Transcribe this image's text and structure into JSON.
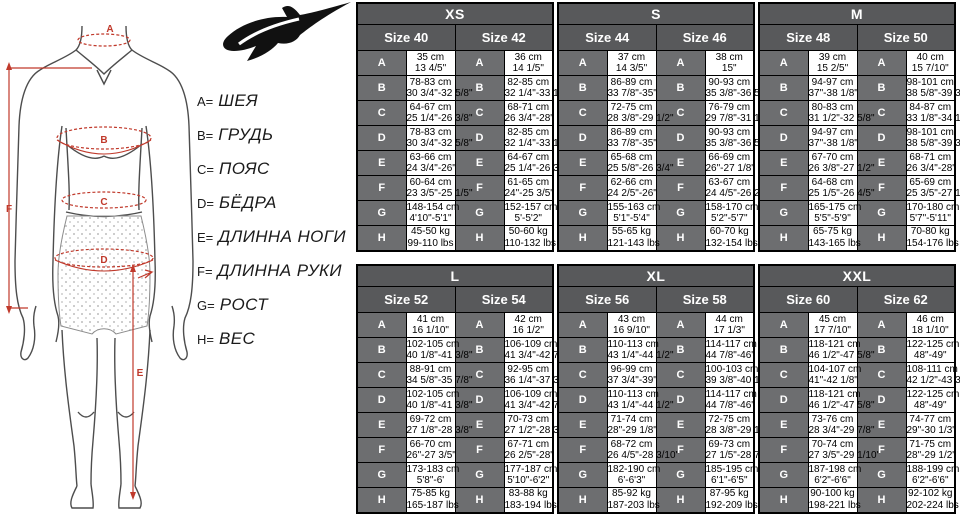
{
  "logo": {
    "brand": "Alpinestars"
  },
  "diagram": {
    "labels": {
      "A": "A",
      "B": "B",
      "C": "C",
      "D": "D",
      "E": "E",
      "F": "F"
    }
  },
  "legend": {
    "items": [
      {
        "letter": "A=",
        "label": "ШЕЯ"
      },
      {
        "letter": "B=",
        "label": "ГРУДЬ"
      },
      {
        "letter": "C=",
        "label": "ПОЯС"
      },
      {
        "letter": "D=",
        "label": "БЁДРА"
      },
      {
        "letter": "E=",
        "label": "ДЛИННА НОГИ"
      },
      {
        "letter": "F=",
        "label": "ДЛИННА РУКИ"
      },
      {
        "letter": "G=",
        "label": "РОСТ"
      },
      {
        "letter": "H=",
        "label": "ВЕС"
      }
    ]
  },
  "row_letters": [
    "A",
    "B",
    "C",
    "D",
    "E",
    "F",
    "G",
    "H"
  ],
  "bands": [
    {
      "groups": [
        {
          "name": "XS",
          "sizes": [
            {
              "label": "Size 40",
              "cells": [
                [
                  "35 cm",
                  "13 4/5\""
                ],
                [
                  "78-83 cm",
                  "30 3/4\"-32 5/8\""
                ],
                [
                  "64-67 cm",
                  "25 1/4\"-26 3/8\""
                ],
                [
                  "78-83 cm",
                  "30 3/4\"-32 5/8\""
                ],
                [
                  "63-66 cm",
                  "24 3/4\"-26\""
                ],
                [
                  "60-64 cm",
                  "23 3/5\"-25 1/5\""
                ],
                [
                  "148-154 cm",
                  "4'10\"-5'1\""
                ],
                [
                  "45-50 kg",
                  "99-110 lbs"
                ]
              ]
            },
            {
              "label": "Size 42",
              "cells": [
                [
                  "36 cm",
                  "14 1/5\""
                ],
                [
                  "82-85 cm",
                  "32 1/4\"-33 1/2\""
                ],
                [
                  "68-71 cm",
                  "26 3/4\"-28\""
                ],
                [
                  "82-85 cm",
                  "32 1/4\"-33 1/2\""
                ],
                [
                  "64-67 cm",
                  "25 1/4\"-26 3/8\""
                ],
                [
                  "61-65 cm",
                  "24\"-25 3/5\""
                ],
                [
                  "152-157 cm",
                  "5'-5'2\""
                ],
                [
                  "50-60 kg",
                  "110-132 lbs"
                ]
              ]
            }
          ]
        },
        {
          "name": "S",
          "sizes": [
            {
              "label": "Size 44",
              "cells": [
                [
                  "37 cm",
                  "14 3/5\""
                ],
                [
                  "86-89 cm",
                  "33 7/8\"-35\""
                ],
                [
                  "72-75 cm",
                  "28 3/8\"-29 1/2\""
                ],
                [
                  "86-89 cm",
                  "33 7/8\"-35\""
                ],
                [
                  "65-68 cm",
                  "25 5/8\"-26 3/4\""
                ],
                [
                  "62-66 cm",
                  "24 2/5\"-26\""
                ],
                [
                  "155-163 cm",
                  "5'1\"-5'4\""
                ],
                [
                  "55-65 kg",
                  "121-143 lbs"
                ]
              ]
            },
            {
              "label": "Size 46",
              "cells": [
                [
                  "38 cm",
                  "15\""
                ],
                [
                  "90-93 cm",
                  "35 3/8\"-36 5/8\""
                ],
                [
                  "76-79 cm",
                  "29 7/8\"-31 1/8\""
                ],
                [
                  "90-93 cm",
                  "35 3/8\"-36 5/8\""
                ],
                [
                  "66-69 cm",
                  "26\"-27 1/8\""
                ],
                [
                  "63-67 cm",
                  "24 4/5\"-26 2/5\""
                ],
                [
                  "158-170 cm",
                  "5'2\"-5'7\""
                ],
                [
                  "60-70 kg",
                  "132-154 lbs"
                ]
              ]
            }
          ]
        },
        {
          "name": "M",
          "sizes": [
            {
              "label": "Size 48",
              "cells": [
                [
                  "39 cm",
                  "15 2/5\""
                ],
                [
                  "94-97 cm",
                  "37\"-38 1/8\""
                ],
                [
                  "80-83 cm",
                  "31 1/2\"-32 5/8\""
                ],
                [
                  "94-97 cm",
                  "37\"-38 1/8\""
                ],
                [
                  "67-70 cm",
                  "26 3/8\"-27 1/2\""
                ],
                [
                  "64-68 cm",
                  "25 1/5\"-26 4/5\""
                ],
                [
                  "165-175 cm",
                  "5'5\"-5'9\""
                ],
                [
                  "65-75 kg",
                  "143-165 lbs"
                ]
              ]
            },
            {
              "label": "Size 50",
              "cells": [
                [
                  "40 cm",
                  "15 7/10\""
                ],
                [
                  "98-101 cm",
                  "38 5/8\"-39 3/4\""
                ],
                [
                  "84-87 cm",
                  "33 1/8\"-34 1/4\""
                ],
                [
                  "98-101 cm",
                  "38 5/8\"-39 3/4\""
                ],
                [
                  "68-71 cm",
                  "26 3/4\"-28\""
                ],
                [
                  "65-69 cm",
                  "25 3/5\"-27 1/5\""
                ],
                [
                  "170-180 cm",
                  "5'7\"-5'11\""
                ],
                [
                  "70-80 kg",
                  "154-176 lbs"
                ]
              ]
            }
          ]
        }
      ]
    },
    {
      "groups": [
        {
          "name": "L",
          "sizes": [
            {
              "label": "Size 52",
              "cells": [
                [
                  "41 cm",
                  "16 1/10\""
                ],
                [
                  "102-105 cm",
                  "40 1/8\"-41 3/8\""
                ],
                [
                  "88-91 cm",
                  "34 5/8\"-35 7/8\""
                ],
                [
                  "102-105 cm",
                  "40 1/8\"-41 3/8\""
                ],
                [
                  "69-72 cm",
                  "27 1/8\"-28 3/8\""
                ],
                [
                  "66-70 cm",
                  "26\"-27 3/5\""
                ],
                [
                  "173-183 cm",
                  "5'8\"-6'"
                ],
                [
                  "75-85 kg",
                  "165-187 lbs"
                ]
              ]
            },
            {
              "label": "Size 54",
              "cells": [
                [
                  "42 cm",
                  "16 1/2\""
                ],
                [
                  "106-109 cm",
                  "41 3/4\"-42 7/8\""
                ],
                [
                  "92-95 cm",
                  "36 1/4\"-37 3/8\""
                ],
                [
                  "106-109 cm",
                  "41 3/4\"-42 7/8\""
                ],
                [
                  "70-73 cm",
                  "27 1/2\"-28 3/4\""
                ],
                [
                  "67-71 cm",
                  "26 2/5\"-28\""
                ],
                [
                  "177-187 cm",
                  "5'10\"-6'2\""
                ],
                [
                  "83-88 kg",
                  "183-194 lbs"
                ]
              ]
            }
          ]
        },
        {
          "name": "XL",
          "sizes": [
            {
              "label": "Size 56",
              "cells": [
                [
                  "43 cm",
                  "16 9/10\""
                ],
                [
                  "110-113 cm",
                  "43 1/4\"-44 1/2\""
                ],
                [
                  "96-99 cm",
                  "37 3/4\"-39\""
                ],
                [
                  "110-113 cm",
                  "43 1/4\"-44 1/2\""
                ],
                [
                  "71-74 cm",
                  "28\"-29 1/8\""
                ],
                [
                  "68-72 cm",
                  "26 4/5\"-28 3/10\""
                ],
                [
                  "182-190 cm",
                  "6'-6'3\""
                ],
                [
                  "85-92 kg",
                  "187-203 lbs"
                ]
              ]
            },
            {
              "label": "Size 58",
              "cells": [
                [
                  "44 cm",
                  "17 1/3\""
                ],
                [
                  "114-117 cm",
                  "44 7/8\"-46\""
                ],
                [
                  "100-103 cm",
                  "39 3/8\"-40 1/2\""
                ],
                [
                  "114-117 cm",
                  "44 7/8\"-46\""
                ],
                [
                  "72-75 cm",
                  "28 3/8\"-29 1/2\""
                ],
                [
                  "69-73 cm",
                  "27 1/5\"-28 7/10\""
                ],
                [
                  "185-195 cm",
                  "6'1\"-6'5\""
                ],
                [
                  "87-95 kg",
                  "192-209 lbs"
                ]
              ]
            }
          ]
        },
        {
          "name": "XXL",
          "sizes": [
            {
              "label": "Size 60",
              "cells": [
                [
                  "45 cm",
                  "17 7/10\""
                ],
                [
                  "118-121 cm",
                  "46 1/2\"-47 5/8\""
                ],
                [
                  "104-107 cm",
                  "41\"-42 1/8\""
                ],
                [
                  "118-121 cm",
                  "46 1/2\"-47 5/8\""
                ],
                [
                  "73-76 cm",
                  "28 3/4\"-29 7/8\""
                ],
                [
                  "70-74 cm",
                  "27 3/5\"-29 1/10\""
                ],
                [
                  "187-198 cm",
                  "6'2\"-6'6\""
                ],
                [
                  "90-100 kg",
                  "198-221 lbs"
                ]
              ]
            },
            {
              "label": "Size 62",
              "cells": [
                [
                  "46 cm",
                  "18 1/10\""
                ],
                [
                  "122-125 cm",
                  "48\"-49\""
                ],
                [
                  "108-111 cm",
                  "42 1/2\"-43 3/4\""
                ],
                [
                  "122-125 cm",
                  "48\"-49\""
                ],
                [
                  "74-77 cm",
                  "29\"-30 1/3\""
                ],
                [
                  "71-75 cm",
                  "28\"-29 1/2\""
                ],
                [
                  "188-199 cm",
                  "6'2\"-6'6\""
                ],
                [
                  "92-102 kg",
                  "202-224 lbs"
                ]
              ]
            }
          ]
        }
      ]
    }
  ],
  "colors": {
    "header_bg": "#58595b",
    "letter_bg": "#6d6e70",
    "border": "#000000",
    "accent_red": "#c0392b",
    "body_outline": "#4d4d4d"
  }
}
